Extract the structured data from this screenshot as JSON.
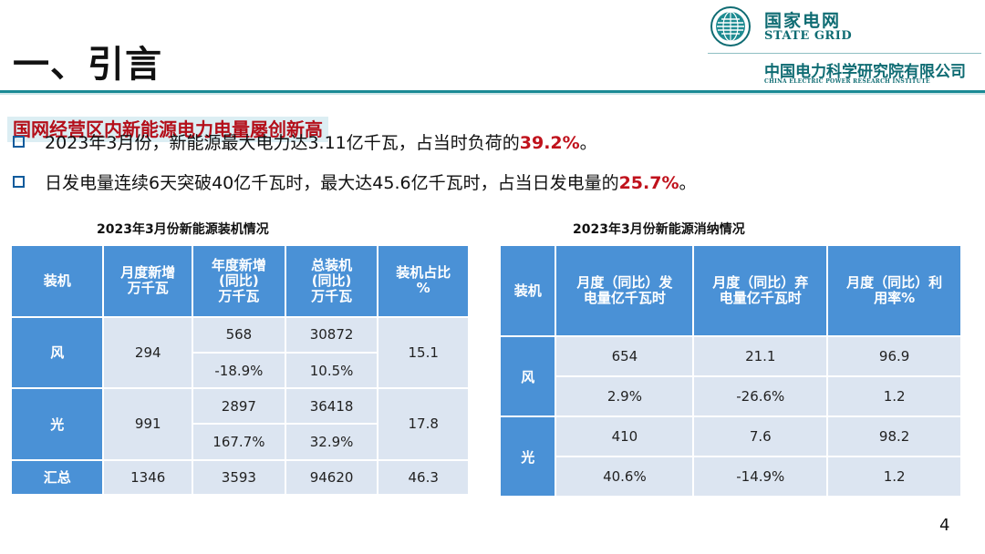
{
  "heading": {
    "title": "一、引言"
  },
  "logo": {
    "name_cn": "国家电网",
    "name_en": "STATE GRID",
    "company_cn": "中国电力科学研究院有限公司",
    "company_en": "CHINA ELECTRIC POWER RESEARCH INSTITUTE",
    "emblem": "state-grid-emblem-icon",
    "color": "#0f6c73"
  },
  "banner": "国网经营区内新能源电力电量屡创新高",
  "bullets": [
    {
      "pre": "2023年3月份，新能源最大电力达3.11亿千瓦，占当时负荷的",
      "highlight": "39.2%",
      "post": "。"
    },
    {
      "pre": "日发电量连续6天突破40亿千瓦时，最大达45.6亿千瓦时，占当日发电量的",
      "highlight": "25.7%",
      "post": "。"
    }
  ],
  "table1": {
    "caption": "2023年3月份新能源装机情况",
    "headers": [
      "装机",
      "月度新增万千瓦",
      "年度新增(同比)万千瓦",
      "总装机(同比)万千瓦",
      "装机占比%"
    ],
    "headers_lines": [
      [
        "装机"
      ],
      [
        "月度新增",
        "万千瓦"
      ],
      [
        "年度新增",
        "(同比)",
        "万千瓦"
      ],
      [
        "总装机",
        "(同比)",
        "万千瓦"
      ],
      [
        "装机占比",
        "%"
      ]
    ],
    "rows": {
      "wind": {
        "label": "风",
        "monthly": "294",
        "annual": "568",
        "annual_yoy": "-18.9%",
        "total": "30872",
        "total_yoy": "10.5%",
        "share": "15.1"
      },
      "solar": {
        "label": "光",
        "monthly": "991",
        "annual": "2897",
        "annual_yoy": "167.7%",
        "total": "36418",
        "total_yoy": "32.9%",
        "share": "17.8"
      },
      "sum": {
        "label": "汇总",
        "monthly": "1346",
        "annual": "3593",
        "total": "94620",
        "share": "46.3"
      }
    }
  },
  "table2": {
    "caption": "2023年3月份新能源消纳情况",
    "headers": [
      "装机",
      "月度（同比）发电量亿千瓦时",
      "月度（同比）弃电量亿千瓦时",
      "月度（同比）利用率%"
    ],
    "headers_lines": [
      [
        "装机"
      ],
      [
        "月度（同比）发",
        "电量亿千瓦时"
      ],
      [
        "月度（同比）弃",
        "电量亿千瓦时"
      ],
      [
        "月度（同比）利",
        "用率%"
      ]
    ],
    "rows": {
      "wind": {
        "label": "风",
        "gen": "654",
        "gen_yoy": "2.9%",
        "curt": "21.1",
        "curt_yoy": "-26.6%",
        "util": "96.9",
        "util_yoy": "1.2"
      },
      "solar": {
        "label": "光",
        "gen": "410",
        "gen_yoy": "40.6%",
        "curt": "7.6",
        "curt_yoy": "-14.9%",
        "util": "98.2",
        "util_yoy": "1.2"
      }
    }
  },
  "page_number": "4",
  "colors": {
    "header_bg": "#4a91d6",
    "cell_bg": "#dce5f1",
    "highlight": "#c0121c",
    "banner_bg": "#dceef3",
    "accent_line": "#1b8a95"
  }
}
